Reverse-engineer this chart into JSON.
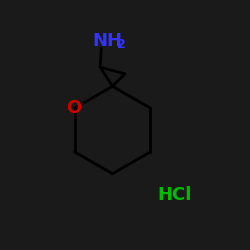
{
  "background_color": "#1a1a1a",
  "bond_color": "#000000",
  "nh2_color": "#3333ff",
  "o_color": "#cc0000",
  "hcl_color": "#00bb00",
  "nh2_text": "NH",
  "nh2_sub": "2",
  "o_text": "O",
  "hcl_text": "HCl",
  "figsize": [
    2.5,
    2.5
  ],
  "dpi": 100,
  "lw": 2.0
}
